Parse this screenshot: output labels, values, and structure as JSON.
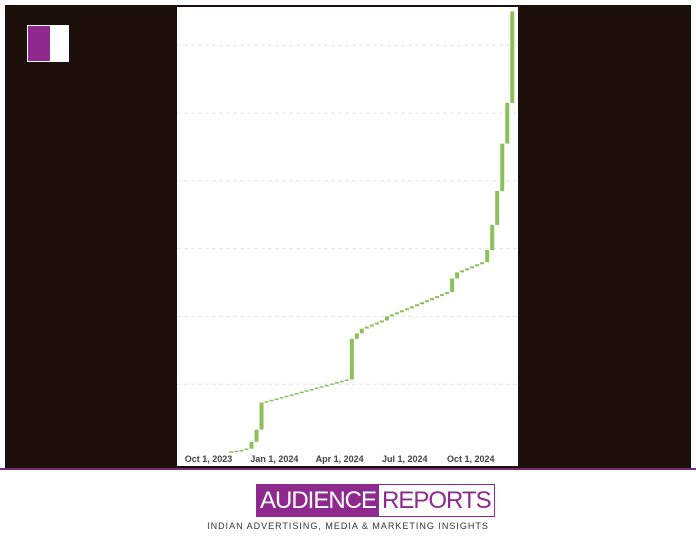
{
  "chart_data": {
    "type": "waterfall",
    "color": "#8cc05a",
    "x": [
      32,
      39,
      46,
      53,
      60,
      67,
      74,
      81,
      88,
      95,
      102,
      109,
      116,
      123,
      130,
      137,
      144,
      151,
      158,
      165,
      172,
      179,
      186,
      193,
      200,
      207,
      214,
      221,
      228,
      235,
      242,
      249,
      256,
      263,
      270,
      277,
      284,
      291,
      298,
      305,
      312,
      319,
      326,
      333,
      340,
      347,
      354,
      361,
      368,
      375,
      382,
      389,
      396,
      403,
      410,
      417,
      424
    ],
    "values": [
      0.01,
      0.01,
      0.01,
      0.02,
      0.1,
      0.18,
      0.4,
      0.02,
      0.02,
      0.02,
      0.02,
      0.02,
      0.02,
      0.02,
      0.02,
      0.02,
      0.02,
      0.02,
      0.02,
      0.02,
      0.02,
      0.02,
      0.02,
      0.02,
      0.6,
      0.08,
      0.07,
      0.03,
      0.03,
      0.03,
      0.03,
      0.06,
      0.03,
      0.03,
      0.03,
      0.03,
      0.03,
      0.03,
      0.03,
      0.03,
      0.03,
      0.03,
      0.03,
      0.03,
      0.2,
      0.09,
      0.03,
      0.03,
      0.03,
      0.03,
      0.03,
      0.18,
      0.37,
      0.5,
      0.7,
      0.6,
      1.35
    ],
    "xlim": [
      -44,
      432
    ],
    "ylim": [
      0,
      6.55
    ],
    "yticks": [
      1,
      2,
      3,
      4,
      5,
      6
    ],
    "grid": true,
    "xticks": [
      {
        "value": 0,
        "label": "Oct 1, 2023"
      },
      {
        "value": 92,
        "label": "Jan 1, 2024"
      },
      {
        "value": 183,
        "label": "Apr 1, 2024"
      },
      {
        "value": 274,
        "label": "Jul 1, 2024"
      },
      {
        "value": 366,
        "label": "Oct 1, 2024"
      }
    ]
  },
  "footer": {
    "logo_left": "AUDIENCE",
    "logo_right": "REPORTS",
    "tagline": "INDIAN ADVERTISING, MEDIA & MARKETING INSIGHTS"
  }
}
